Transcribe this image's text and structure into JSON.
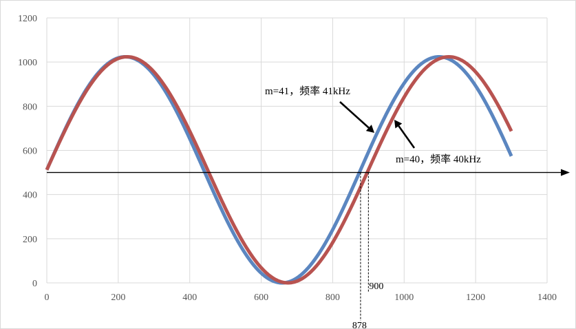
{
  "chart_data": {
    "type": "line",
    "title": "",
    "xlabel": "",
    "ylabel": "",
    "xlim": [
      0,
      1400
    ],
    "ylim": [
      0,
      1200
    ],
    "x_ticks": [
      0,
      200,
      400,
      600,
      800,
      1000,
      1200,
      1400
    ],
    "y_ticks": [
      0,
      200,
      400,
      600,
      800,
      1000,
      1200
    ],
    "grid": true,
    "legend": "none",
    "series": [
      {
        "name": "m=41，频率 41kHz",
        "color": "#5b86c0",
        "x_range": [
          0,
          1300
        ],
        "offset": 512,
        "amplitude": 512,
        "period": 878
      },
      {
        "name": "m=40，频率 40kHz",
        "color": "#b85350",
        "x_range": [
          0,
          1300
        ],
        "offset": 512,
        "amplitude": 512,
        "period": 900
      }
    ],
    "threshold": {
      "y": 500,
      "color": "#000000"
    },
    "markers": [
      {
        "x": 878,
        "label": "878"
      },
      {
        "x": 900,
        "label": "900"
      }
    ]
  }
}
